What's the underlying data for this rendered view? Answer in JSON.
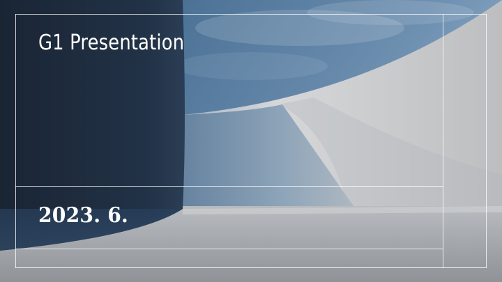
{
  "slide": {
    "title": "G1 Presentation",
    "date": "2023. 6."
  },
  "colors": {
    "dark_panel": "#1d2a3b",
    "sky_blue": "#4f7396",
    "wall_light": "#c7c8ca",
    "floor_gray": "#9ea2a7",
    "frame_line": "#ffffff"
  }
}
